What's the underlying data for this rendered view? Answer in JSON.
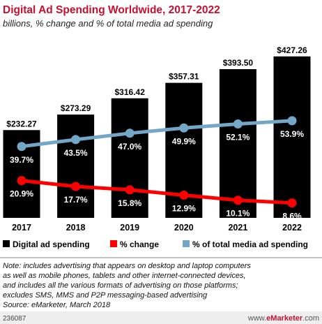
{
  "chart_data": {
    "type": "bar",
    "title": "Digital Ad Spending Worldwide, 2017-2022",
    "subtitle": "billions, % change and % of total media ad spending",
    "categories": [
      "2017",
      "2018",
      "2019",
      "2020",
      "2021",
      "2022"
    ],
    "series": [
      {
        "name": "Digital ad spending",
        "type": "bar",
        "values": [
          232.27,
          273.29,
          316.42,
          357.31,
          393.5,
          427.26
        ],
        "labels": [
          "$232.27",
          "$273.29",
          "$316.42",
          "$357.31",
          "$393.50",
          "$427.26"
        ]
      },
      {
        "name": "% change",
        "type": "line",
        "values": [
          20.9,
          17.7,
          15.8,
          12.9,
          10.1,
          8.6
        ],
        "labels": [
          "20.9%",
          "17.7%",
          "15.8%",
          "12.9%",
          "10.1%",
          "8.6%"
        ]
      },
      {
        "name": "% of total media ad spending",
        "type": "line",
        "values": [
          39.7,
          43.5,
          47.0,
          49.9,
          52.1,
          53.9
        ],
        "labels": [
          "39.7%",
          "43.5%",
          "47.0%",
          "49.9%",
          "52.1%",
          "53.9%"
        ]
      }
    ],
    "legend_position": "bottom",
    "grid": false
  },
  "colors": {
    "title": "#c8102e",
    "bar": "#000000",
    "change_line": "#ff0000",
    "share_line": "#72a7c8",
    "footer_bar": "#eeeeee",
    "footer_brand": "#c8102e"
  },
  "footnote_lines": [
    "Note: includes advertising that appears on desktop and laptop computers",
    "as well as mobile phones, tablets and other internet-connected devices,",
    "and includes all the various formats of advertising on those platforms;",
    "excludes SMS, MMS and P2P messaging-based advertising",
    "Source: eMarketer, March 2018"
  ],
  "footer": {
    "id": "236087",
    "brand_prefix": "www.",
    "brand_name": "eMarketer",
    "brand_suffix": ".com"
  }
}
